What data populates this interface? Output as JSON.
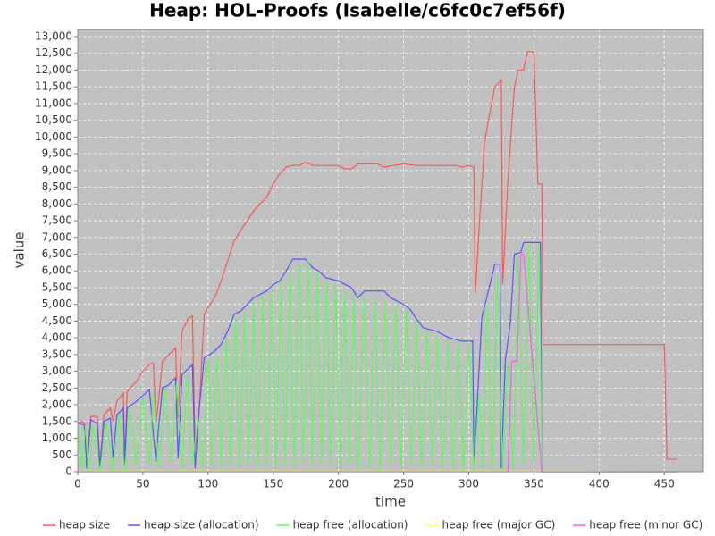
{
  "chart_data": {
    "type": "line",
    "title": "Heap: HOL-Proofs (Isabelle/c6fc0c7ef56f)",
    "x_label": "time",
    "y_label": "value",
    "xlim": [
      0,
      480
    ],
    "ylim": [
      0,
      13214
    ],
    "xticks": [
      0,
      50,
      100,
      150,
      200,
      250,
      300,
      350,
      400,
      450
    ],
    "yticks": [
      0,
      500,
      {
        "value": 1000,
        "label": "1,000"
      },
      {
        "value": 1500,
        "label": "1,500"
      },
      {
        "value": 2000,
        "label": "2,000"
      },
      {
        "value": 2500,
        "label": "2,500"
      },
      {
        "value": 3000,
        "label": "3,000"
      },
      {
        "value": 3500,
        "label": "3,500"
      },
      {
        "value": 4000,
        "label": "4,000"
      },
      {
        "value": 4500,
        "label": "4,500"
      },
      {
        "value": 5000,
        "label": "5,000"
      },
      {
        "value": 5500,
        "label": "5,500"
      },
      {
        "value": 6000,
        "label": "6,000"
      },
      {
        "value": 6500,
        "label": "6,500"
      },
      {
        "value": 7000,
        "label": "7,000"
      },
      {
        "value": 7500,
        "label": "7,500"
      },
      {
        "value": 8000,
        "label": "8,000"
      },
      {
        "value": 8500,
        "label": "8,500"
      },
      {
        "value": 9000,
        "label": "9,000"
      },
      {
        "value": 9500,
        "label": "9,500"
      },
      {
        "value": 10000,
        "label": "10,000"
      },
      {
        "value": 10500,
        "label": "10,500"
      },
      {
        "value": 11000,
        "label": "11,000"
      },
      {
        "value": 11500,
        "label": "11,500"
      },
      {
        "value": 12000,
        "label": "12,000"
      },
      {
        "value": 12500,
        "label": "12,500"
      },
      {
        "value": 13000,
        "label": "13,000"
      }
    ],
    "grid": true,
    "legend": "bottom",
    "series": [
      {
        "name": "heap size",
        "color": "#ff5555",
        "x": [
          0,
          3,
          6,
          7,
          10,
          15,
          17,
          20,
          25,
          27,
          30,
          35,
          36,
          38,
          45,
          50,
          55,
          58,
          60,
          62,
          65,
          70,
          75,
          77,
          80,
          85,
          88,
          90,
          93,
          97,
          100,
          105,
          110,
          115,
          120,
          125,
          130,
          135,
          140,
          145,
          150,
          155,
          160,
          165,
          170,
          175,
          180,
          200,
          205,
          210,
          215,
          230,
          235,
          250,
          260,
          290,
          295,
          300,
          304,
          305,
          308,
          312,
          315,
          320,
          325,
          326,
          330,
          335,
          338,
          342,
          345,
          350,
          353,
          356,
          357,
          360,
          450,
          452,
          460
        ],
        "values": [
          1450,
          1500,
          1450,
          300,
          1650,
          1650,
          200,
          1700,
          1900,
          1500,
          2100,
          2350,
          400,
          2400,
          2700,
          3000,
          3200,
          3250,
          1500,
          2100,
          3300,
          3500,
          3700,
          1600,
          4200,
          4600,
          4650,
          700,
          1700,
          4700,
          4900,
          5200,
          5700,
          6300,
          6900,
          7200,
          7500,
          7800,
          8000,
          8200,
          8600,
          8900,
          9100,
          9150,
          9150,
          9250,
          9150,
          9150,
          9050,
          9050,
          9200,
          9200,
          9100,
          9200,
          9150,
          9150,
          9100,
          9150,
          9100,
          5350,
          7300,
          9800,
          10500,
          11500,
          11700,
          5600,
          8700,
          11500,
          12000,
          12000,
          12550,
          12550,
          8600,
          8600,
          3800,
          3800,
          3800,
          380,
          380
        ]
      },
      {
        "name": "heap size (allocation)",
        "color": "#5555ff",
        "x": [
          0,
          5,
          7,
          10,
          15,
          17,
          20,
          25,
          27,
          30,
          35,
          36,
          38,
          45,
          55,
          60,
          62,
          65,
          70,
          75,
          77,
          80,
          88,
          90,
          93,
          97,
          105,
          110,
          115,
          120,
          125,
          130,
          135,
          140,
          145,
          150,
          155,
          160,
          165,
          175,
          180,
          185,
          190,
          200,
          210,
          215,
          220,
          235,
          240,
          250,
          255,
          260,
          265,
          275,
          285,
          295,
          303,
          304,
          307,
          310,
          315,
          320,
          324,
          325,
          328,
          332,
          335,
          340,
          342,
          355,
          356,
          460
        ],
        "values": [
          1450,
          1400,
          100,
          1550,
          1450,
          100,
          1500,
          1600,
          400,
          1700,
          1900,
          200,
          1900,
          2100,
          2450,
          300,
          1300,
          2500,
          2600,
          2800,
          400,
          2900,
          3200,
          100,
          1800,
          3400,
          3600,
          3800,
          4200,
          4700,
          4800,
          5000,
          5200,
          5300,
          5400,
          5600,
          5700,
          6000,
          6350,
          6350,
          6100,
          6000,
          5800,
          5700,
          5500,
          5200,
          5400,
          5400,
          5200,
          5000,
          4850,
          4550,
          4300,
          4200,
          4000,
          3900,
          3900,
          100,
          2400,
          4600,
          5400,
          6200,
          6200,
          100,
          3300,
          4500,
          6500,
          6550,
          6850,
          6850,
          0,
          0
        ]
      },
      {
        "name": "heap free (allocation)",
        "color": "#55ff55",
        "x": [
          0,
          3,
          6,
          8,
          12,
          17,
          22,
          27,
          32,
          36,
          40,
          45,
          50,
          55,
          58,
          62,
          67,
          72,
          76,
          80,
          84,
          88,
          92,
          96,
          100,
          103,
          107,
          110,
          114,
          117,
          121,
          124,
          128,
          131,
          135,
          138,
          142,
          145,
          149,
          152,
          156,
          159,
          163,
          166,
          170,
          173,
          177,
          180,
          184,
          187,
          191,
          194,
          198,
          201,
          205,
          208,
          212,
          215,
          220,
          224,
          228,
          232,
          236,
          240,
          244,
          248,
          252,
          256,
          260,
          264,
          268,
          272,
          276,
          280,
          284,
          288,
          292,
          296,
          300,
          304,
          308,
          311,
          314,
          318,
          322,
          326,
          330,
          334,
          338,
          342,
          346,
          350,
          354,
          356,
          460
        ],
        "values": [
          1400,
          100,
          1400,
          0,
          1400,
          0,
          1500,
          0,
          1700,
          0,
          1900,
          200,
          2200,
          200,
          2400,
          100,
          2500,
          300,
          2700,
          100,
          2900,
          200,
          1600,
          100,
          3400,
          200,
          3500,
          100,
          4000,
          200,
          4600,
          100,
          4800,
          200,
          5100,
          100,
          5300,
          200,
          5500,
          100,
          5700,
          200,
          6000,
          100,
          6200,
          300,
          6300,
          200,
          6000,
          300,
          5700,
          200,
          5600,
          100,
          5400,
          200,
          5300,
          0,
          5200,
          100,
          5200,
          0,
          5100,
          200,
          5000,
          100,
          4900,
          200,
          4500,
          100,
          4200,
          200,
          4100,
          100,
          3900,
          100,
          3900,
          0,
          3800,
          0,
          2300,
          100,
          5000,
          100,
          5900,
          0,
          3300,
          100,
          6500,
          200,
          6800,
          300,
          6800,
          0,
          0
        ]
      },
      {
        "name": "heap free (major GC)",
        "color": "#ffff55",
        "x": [
          0,
          356,
          460
        ],
        "values": [
          20,
          20,
          0
        ]
      },
      {
        "name": "heap free (minor GC)",
        "color": "#ff55ff",
        "x": [
          0,
          330,
          333,
          337,
          340,
          342,
          356,
          460
        ],
        "values": [
          0,
          0,
          3300,
          3300,
          6500,
          6500,
          0,
          0
        ]
      }
    ]
  }
}
